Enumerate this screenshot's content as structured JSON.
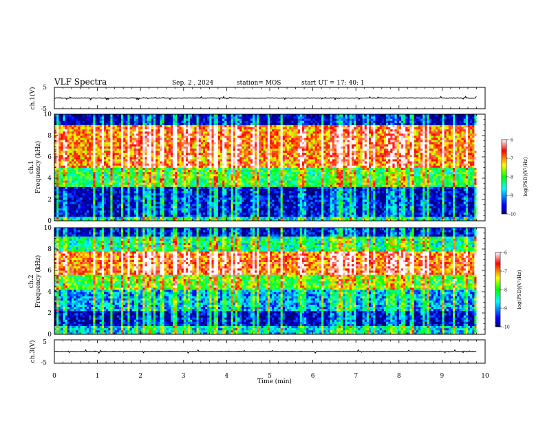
{
  "header": {
    "title": "VLF Spectra",
    "date": "Sep. 2  , 2024",
    "station": "station= MOS",
    "start": "start  UT =   17: 40: 1"
  },
  "chart_data": [
    {
      "type": "line",
      "panel": "ch1-waveform",
      "ylabel": "ch.1(V)",
      "ylim": [
        -5,
        5
      ],
      "yticks": [
        "5",
        "-5"
      ],
      "xlim": [
        0,
        10
      ],
      "trace_level": 0,
      "grid": false
    },
    {
      "type": "heatmap",
      "panel": "ch1-spectrogram",
      "ylabel": "ch.1",
      "ylabel2": "Frequency (kHz)",
      "ylim": [
        0,
        10
      ],
      "yticks": [
        "0",
        "2",
        "4",
        "6",
        "8",
        "10"
      ],
      "xlim": [
        0,
        10
      ],
      "data_end_min": 9.8,
      "colorbar": {
        "label": "log(PSD)(V²/Hz)",
        "range": [
          -10,
          -6
        ],
        "ticks": [
          "-6",
          "-7",
          "-8",
          "-9",
          "-10"
        ]
      },
      "bands": [
        {
          "from": 0,
          "to": 0.3,
          "level": -8.6
        },
        {
          "from": 0.3,
          "to": 2.4,
          "level": -9.7
        },
        {
          "from": 2.4,
          "to": 3.2,
          "level": -9.8
        },
        {
          "from": 3.2,
          "to": 5.0,
          "level": -8.2
        },
        {
          "from": 5.0,
          "to": 9.0,
          "level": -7.0
        },
        {
          "from": 9.0,
          "to": 10,
          "level": -9.9
        }
      ]
    },
    {
      "type": "heatmap",
      "panel": "ch2-spectrogram",
      "ylabel": "ch.2",
      "ylabel2": "Frequency (kHz)",
      "ylim": [
        0,
        10
      ],
      "yticks": [
        "0",
        "2",
        "4",
        "6",
        "8",
        "10"
      ],
      "xlim": [
        0,
        10
      ],
      "data_end_min": 9.8,
      "colorbar": {
        "label": "log(PSD)(V²/Hz)",
        "range": [
          -10,
          -6
        ],
        "ticks": [
          "-6",
          "-7",
          "-8",
          "-9",
          "-10"
        ]
      },
      "bands": [
        {
          "from": 0,
          "to": 0.8,
          "level": -8.8
        },
        {
          "from": 0.8,
          "to": 2.2,
          "level": -9.8
        },
        {
          "from": 2.2,
          "to": 4.2,
          "level": -9.0
        },
        {
          "from": 4.2,
          "to": 5.5,
          "level": -8.0
        },
        {
          "from": 5.5,
          "to": 7.8,
          "level": -6.9
        },
        {
          "from": 7.8,
          "to": 9.2,
          "level": -8.4
        },
        {
          "from": 9.2,
          "to": 10,
          "level": -9.7
        }
      ]
    },
    {
      "type": "line",
      "panel": "ch3-waveform",
      "ylabel": "ch.3(V)",
      "ylim": [
        -5,
        5
      ],
      "yticks": [
        "5",
        "-5"
      ],
      "xlim": [
        0,
        10
      ],
      "xticks": [
        "0",
        "1",
        "2",
        "3",
        "4",
        "5",
        "6",
        "7",
        "8",
        "9",
        "10"
      ],
      "xlabel": "Time (min)",
      "trace_level": 0,
      "grid": false
    }
  ]
}
